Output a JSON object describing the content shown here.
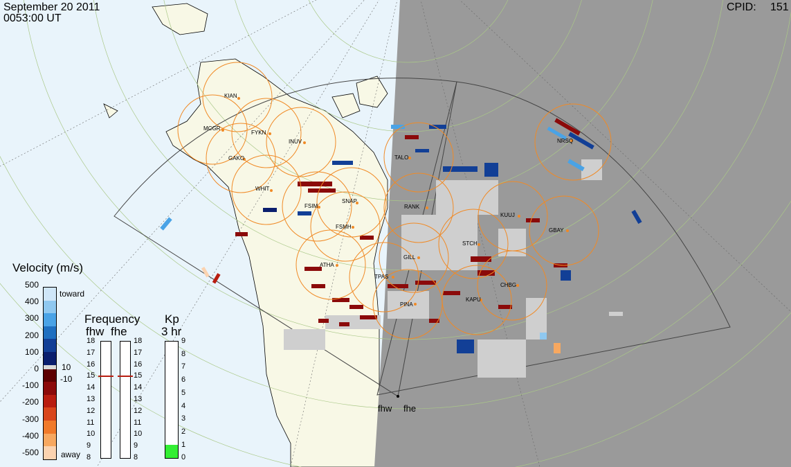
{
  "header": {
    "date": "September 20 2011",
    "time": "0053:00 UT",
    "cpid_label": "CPID:",
    "cpid_value": "151"
  },
  "stations": [
    "KIAN",
    "MCGR",
    "FYKN",
    "GAKO",
    "INUV",
    "WHIT",
    "TALO",
    "RANK",
    "FSIM",
    "SNAP",
    "FSMH",
    "KUUJ",
    "GBAY",
    "NRSQ",
    "STCH",
    "GILL",
    "ATHA",
    "TPAS",
    "CHBG",
    "PINA",
    "KAPU"
  ],
  "radars": [
    "fhw",
    "fhe"
  ],
  "velocity": {
    "title": "Velocity (m/s)",
    "ticks": [
      "500",
      "400",
      "300",
      "200",
      "100",
      "0",
      "-100",
      "-200",
      "-300",
      "-400",
      "-500"
    ],
    "toward": "toward",
    "away": "away",
    "pos_threshold": "10",
    "neg_threshold": "-10",
    "colors": [
      "#cfe6f8",
      "#8fc8f0",
      "#4aa3e6",
      "#1f6fc0",
      "#123f96",
      "#0a1e6e",
      "#d9d9d9",
      "#5c0000",
      "#8b0a0a",
      "#b81d10",
      "#d8461c",
      "#f07a2a",
      "#f7a860",
      "#fbd3b0"
    ]
  },
  "frequency": {
    "title": "Frequency",
    "col_fhw": "fhw",
    "col_fhe": "fhe",
    "ticks": [
      "18",
      "17",
      "16",
      "15",
      "14",
      "13",
      "12",
      "11",
      "10",
      "9",
      "8"
    ],
    "fhw_mhz": 15,
    "fhe_mhz": 15
  },
  "kp": {
    "title": "Kp",
    "subtitle": "3 hr",
    "ticks": [
      "9",
      "8",
      "7",
      "6",
      "5",
      "4",
      "3",
      "2",
      "1",
      "0"
    ],
    "value": 1,
    "fill_color": "#33ee33"
  },
  "colors": {
    "ocean": "#e9f4fb",
    "land": "#f8f8e6",
    "night": "#9a9a9a",
    "circle": "#f08a26",
    "low_velocity": "#cfcfcf"
  }
}
